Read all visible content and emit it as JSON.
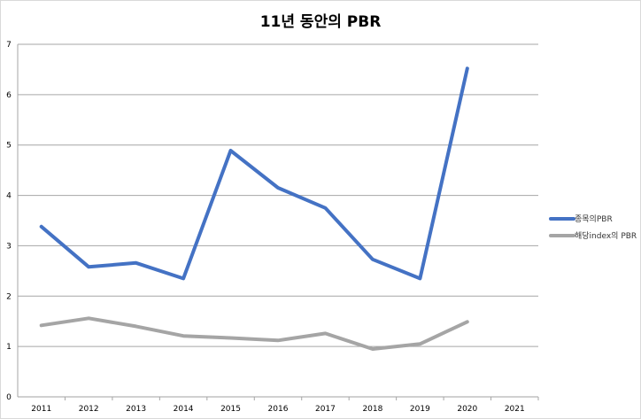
{
  "chart_data": {
    "type": "line",
    "title": "11년 동안의 PBR",
    "categories": [
      "2011",
      "2012",
      "2013",
      "2014",
      "2015",
      "2016",
      "2017",
      "2018",
      "2019",
      "2020",
      "2021"
    ],
    "y_ticks": [
      "0",
      "1",
      "2",
      "3",
      "4",
      "5",
      "6",
      "7"
    ],
    "ylim": [
      0,
      7
    ],
    "grid": true,
    "legend_position": "right",
    "series": [
      {
        "name": "종목의PBR",
        "color": "#4472c4",
        "values": [
          3.38,
          2.58,
          2.66,
          2.35,
          4.89,
          4.15,
          3.75,
          2.73,
          2.35,
          6.52,
          null
        ]
      },
      {
        "name": "해당index의 PBR",
        "color": "#a5a5a5",
        "values": [
          1.42,
          1.56,
          1.4,
          1.21,
          1.17,
          1.12,
          1.26,
          0.95,
          1.05,
          1.49,
          null
        ]
      }
    ]
  }
}
